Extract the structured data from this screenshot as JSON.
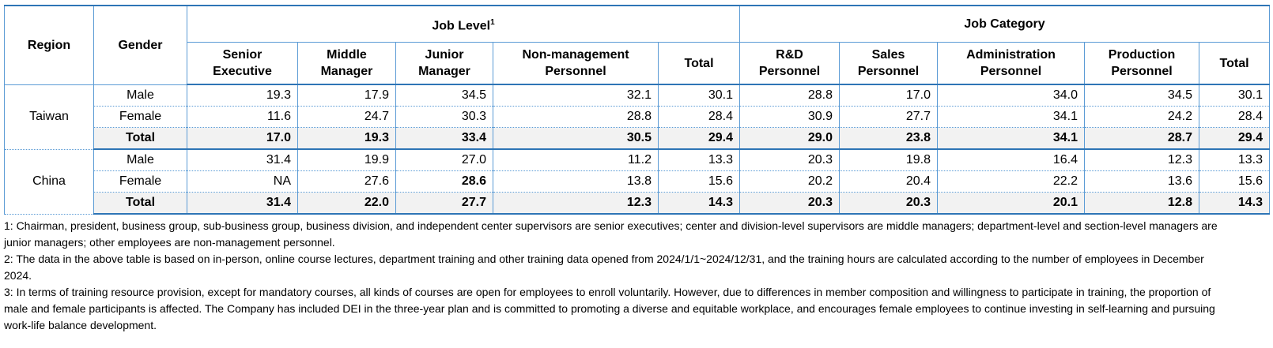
{
  "table": {
    "header": {
      "region": "Region",
      "gender": "Gender",
      "groups": [
        {
          "title": "Job Level",
          "note": "1",
          "columns": [
            [
              "Senior",
              "Executive"
            ],
            [
              "Middle",
              "Manager"
            ],
            [
              "Junior",
              "Manager"
            ],
            [
              "Non-management",
              "Personnel"
            ],
            [
              "Total"
            ]
          ]
        },
        {
          "title": "Job Category",
          "columns": [
            [
              "R&D",
              "Personnel"
            ],
            [
              "Sales",
              "Personnel"
            ],
            [
              "Administration",
              "Personnel"
            ],
            [
              "Production",
              "Personnel"
            ],
            [
              "Total"
            ]
          ]
        }
      ]
    },
    "regions": [
      {
        "region": "Taiwan",
        "rows": [
          {
            "gender": "Male",
            "cells": [
              "19.3",
              "17.9",
              "34.5",
              "32.1",
              "30.1",
              "28.8",
              "17.0",
              "34.0",
              "34.5",
              "30.1"
            ]
          },
          {
            "gender": "Female",
            "cells": [
              "11.6",
              "24.7",
              "30.3",
              "28.8",
              "28.4",
              "30.9",
              "27.7",
              "34.1",
              "24.2",
              "28.4"
            ]
          },
          {
            "gender": "Total",
            "cells": [
              "17.0",
              "19.3",
              "33.4",
              "30.5",
              "29.4",
              "29.0",
              "23.8",
              "34.1",
              "28.7",
              "29.4"
            ]
          }
        ]
      },
      {
        "region": "China",
        "rows": [
          {
            "gender": "Male",
            "cells": [
              "31.4",
              "19.9",
              "27.0",
              "11.2",
              "13.3",
              "20.3",
              "19.8",
              "16.4",
              "12.3",
              "13.3"
            ]
          },
          {
            "gender": "Female",
            "cells": [
              "NA",
              "27.6",
              "28.6",
              "13.8",
              "15.6",
              "20.2",
              "20.4",
              "22.2",
              "13.6",
              "15.6"
            ]
          },
          {
            "gender": "Total",
            "cells": [
              "31.4",
              "22.0",
              "27.7",
              "12.3",
              "14.3",
              "20.3",
              "20.3",
              "20.1",
              "12.8",
              "14.3"
            ]
          }
        ]
      }
    ]
  },
  "footnotes": [
    "1: Chairman, president, business group, sub-business group, business division, and independent center supervisors are senior executives; center and division-level supervisors are middle managers; department-level and section-level managers are junior managers; other employees are non-management personnel.",
    "2: The data in the above table is based on in-person, online course lectures, department training and other training data opened from 2024/1/1~2024/12/31, and the training hours are calculated according to the number of employees in December 2024.",
    "3: In terms of training resource provision, except for mandatory courses, all kinds of courses are open for employees to enroll voluntarily. However, due to differences in member composition and willingness to participate in training, the proportion of male and female participants is affected. The Company has included DEI in the three-year plan and is committed to promoting a diverse and equitable workplace, and encourages female employees to continue investing in self-learning and pursuing work-life balance development."
  ]
}
